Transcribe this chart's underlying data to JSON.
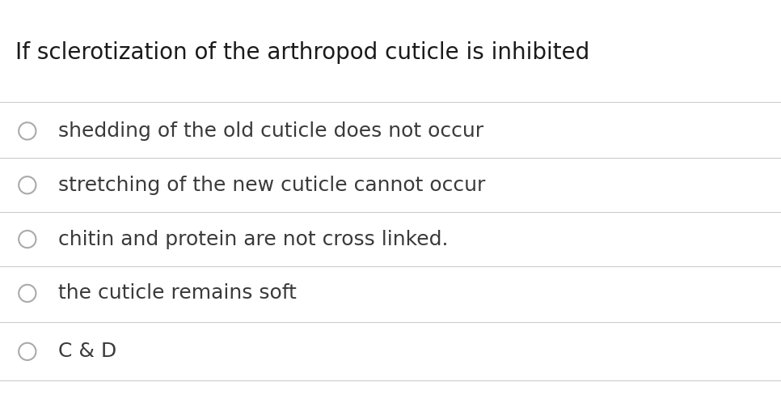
{
  "title": "If sclerotization of the arthropod cuticle is inhibited",
  "options": [
    "shedding of the old cuticle does not occur",
    "stretching of the new cuticle cannot occur",
    "chitin and protein are not cross linked.",
    "the cuticle remains soft",
    "C & D"
  ],
  "background_color": "#ffffff",
  "text_color": "#3a3a3a",
  "title_color": "#1a1a1a",
  "line_color": "#cccccc",
  "circle_color": "#aaaaaa",
  "title_fontsize": 20,
  "option_fontsize": 18,
  "fig_width": 9.66,
  "fig_height": 5.14,
  "dpi": 100
}
